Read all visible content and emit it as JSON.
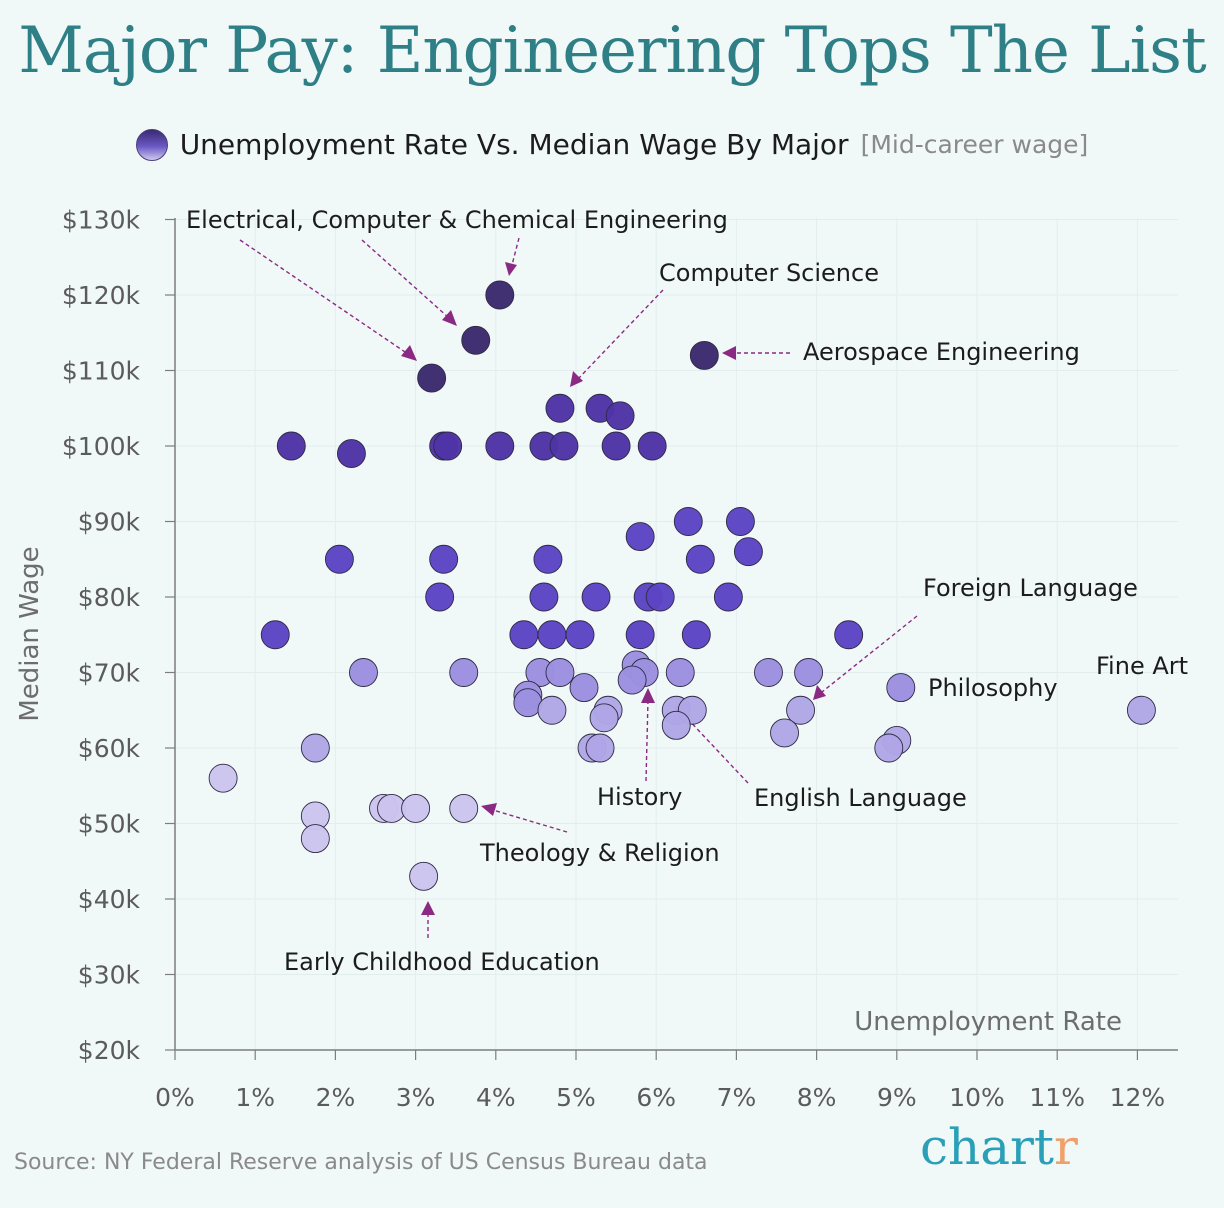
{
  "title": "Major Pay: Engineering Tops The List",
  "legend": {
    "label": "Unemployment Rate Vs. Median Wage By Major",
    "sublabel": "[Mid-career wage]"
  },
  "source": "Source: NY Federal Reserve analysis of US Census Bureau data",
  "brand": {
    "main": "chart",
    "accent": "r"
  },
  "colors": {
    "title": "#2f7f86",
    "point_high": "#3b2a6e",
    "point_mid": "#6a4fc6",
    "point_low": "#cbc4ee",
    "arrow": "#8a2a82"
  },
  "chart_data": {
    "type": "scatter",
    "title": "Unemployment Rate Vs. Median Wage By Major",
    "xlabel": "Unemployment Rate",
    "ylabel": "Median Wage",
    "xlim": [
      0,
      12.5
    ],
    "ylim": [
      20,
      130
    ],
    "x_ticks": [
      0,
      1,
      2,
      3,
      4,
      5,
      6,
      7,
      8,
      9,
      10,
      11,
      12
    ],
    "x_tick_labels": [
      "0%",
      "1%",
      "2%",
      "3%",
      "4%",
      "5%",
      "6%",
      "7%",
      "8%",
      "9%",
      "10%",
      "11%",
      "12%"
    ],
    "y_ticks": [
      20,
      30,
      40,
      50,
      60,
      70,
      80,
      90,
      100,
      110,
      120,
      130
    ],
    "y_tick_labels": [
      "$20k",
      "$30k",
      "$40k",
      "$50k",
      "$60k",
      "$70k",
      "$80k",
      "$90k",
      "$100k",
      "$110k",
      "$120k",
      "$130k"
    ],
    "grid": true,
    "points": [
      {
        "x": 4.05,
        "y": 120
      },
      {
        "x": 3.75,
        "y": 114
      },
      {
        "x": 6.6,
        "y": 112
      },
      {
        "x": 3.2,
        "y": 109
      },
      {
        "x": 4.8,
        "y": 105
      },
      {
        "x": 5.3,
        "y": 105
      },
      {
        "x": 5.55,
        "y": 104
      },
      {
        "x": 1.45,
        "y": 100
      },
      {
        "x": 2.2,
        "y": 99
      },
      {
        "x": 3.35,
        "y": 100
      },
      {
        "x": 3.4,
        "y": 100
      },
      {
        "x": 4.05,
        "y": 100
      },
      {
        "x": 4.6,
        "y": 100
      },
      {
        "x": 4.85,
        "y": 100
      },
      {
        "x": 5.5,
        "y": 100
      },
      {
        "x": 5.95,
        "y": 100
      },
      {
        "x": 6.4,
        "y": 90
      },
      {
        "x": 7.05,
        "y": 90
      },
      {
        "x": 5.8,
        "y": 88
      },
      {
        "x": 7.15,
        "y": 86
      },
      {
        "x": 2.05,
        "y": 85
      },
      {
        "x": 3.35,
        "y": 85
      },
      {
        "x": 4.65,
        "y": 85
      },
      {
        "x": 6.55,
        "y": 85
      },
      {
        "x": 3.3,
        "y": 80
      },
      {
        "x": 4.6,
        "y": 80
      },
      {
        "x": 5.25,
        "y": 80
      },
      {
        "x": 5.9,
        "y": 80
      },
      {
        "x": 6.05,
        "y": 80
      },
      {
        "x": 6.9,
        "y": 80
      },
      {
        "x": 1.25,
        "y": 75
      },
      {
        "x": 4.35,
        "y": 75
      },
      {
        "x": 4.7,
        "y": 75
      },
      {
        "x": 5.05,
        "y": 75
      },
      {
        "x": 5.8,
        "y": 75
      },
      {
        "x": 6.5,
        "y": 75
      },
      {
        "x": 8.4,
        "y": 75
      },
      {
        "x": 2.35,
        "y": 70
      },
      {
        "x": 3.6,
        "y": 70
      },
      {
        "x": 4.55,
        "y": 70
      },
      {
        "x": 4.8,
        "y": 70
      },
      {
        "x": 5.75,
        "y": 71
      },
      {
        "x": 5.85,
        "y": 70
      },
      {
        "x": 6.3,
        "y": 70
      },
      {
        "x": 7.4,
        "y": 70
      },
      {
        "x": 7.9,
        "y": 70
      },
      {
        "x": 9.05,
        "y": 68
      },
      {
        "x": 12.05,
        "y": 65
      },
      {
        "x": 5.1,
        "y": 68
      },
      {
        "x": 5.7,
        "y": 69
      },
      {
        "x": 4.4,
        "y": 67
      },
      {
        "x": 4.4,
        "y": 66
      },
      {
        "x": 4.7,
        "y": 65
      },
      {
        "x": 5.4,
        "y": 65
      },
      {
        "x": 5.35,
        "y": 64
      },
      {
        "x": 6.25,
        "y": 65
      },
      {
        "x": 6.45,
        "y": 65
      },
      {
        "x": 6.25,
        "y": 63
      },
      {
        "x": 7.8,
        "y": 65
      },
      {
        "x": 7.6,
        "y": 62
      },
      {
        "x": 9.0,
        "y": 61
      },
      {
        "x": 8.9,
        "y": 60
      },
      {
        "x": 5.2,
        "y": 60
      },
      {
        "x": 5.3,
        "y": 60
      },
      {
        "x": 1.75,
        "y": 60
      },
      {
        "x": 0.6,
        "y": 56
      },
      {
        "x": 1.75,
        "y": 51
      },
      {
        "x": 1.75,
        "y": 48
      },
      {
        "x": 2.6,
        "y": 52
      },
      {
        "x": 2.7,
        "y": 52
      },
      {
        "x": 3.0,
        "y": 52
      },
      {
        "x": 3.6,
        "y": 52
      },
      {
        "x": 3.1,
        "y": 43
      }
    ],
    "annotations": [
      {
        "text": "Electrical, Computer & Chemical Engineering"
      },
      {
        "text": "Computer Science"
      },
      {
        "text": "Aerospace Engineering"
      },
      {
        "text": "Foreign Language"
      },
      {
        "text": "Philosophy"
      },
      {
        "text": "Fine Art"
      },
      {
        "text": "History"
      },
      {
        "text": "English Language"
      },
      {
        "text": "Theology & Religion"
      },
      {
        "text": "Early Childhood Education"
      }
    ]
  }
}
